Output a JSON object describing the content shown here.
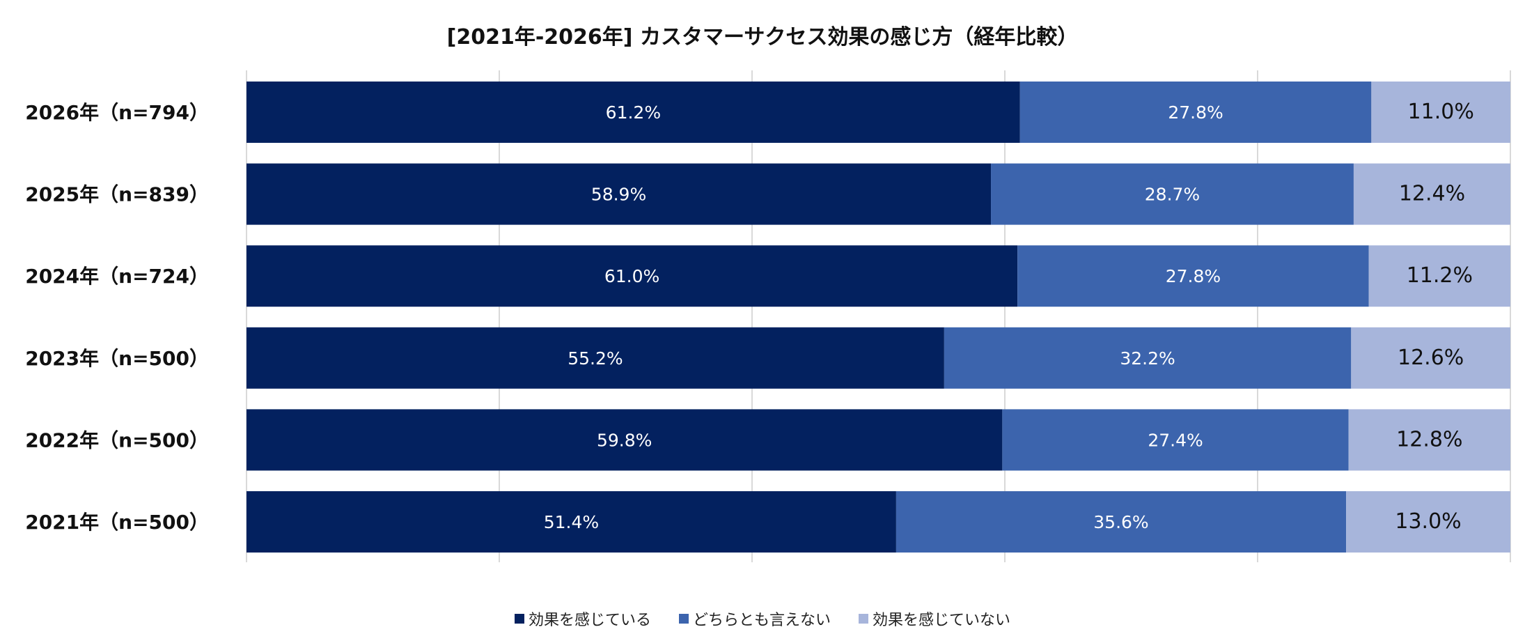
{
  "chart_data": {
    "type": "bar",
    "orientation": "horizontal",
    "stacked": true,
    "title": "[2021年-2026年] カスタマーサクセス効果の感じ方（経年比較）",
    "categories": [
      "2026年（n=794）",
      "2025年（n=839）",
      "2024年（n=724）",
      "2023年（n=500）",
      "2022年（n=500）",
      "2021年（n=500）"
    ],
    "series": [
      {
        "name": "効果を感じている",
        "color": "#03215F",
        "label_color": "#ffffff",
        "values": [
          61.2,
          58.9,
          61.0,
          55.2,
          59.8,
          51.4
        ]
      },
      {
        "name": "どちらとも言えない",
        "color": "#3C64AD",
        "label_color": "#ffffff",
        "values": [
          27.8,
          28.7,
          27.8,
          32.2,
          27.4,
          35.6
        ]
      },
      {
        "name": "効果を感じていない",
        "color": "#A7B5DB",
        "label_color": "#111111",
        "values": [
          11.0,
          12.4,
          11.2,
          12.6,
          12.8,
          13.0
        ]
      }
    ],
    "xlim": [
      0,
      100
    ],
    "grid_step": 20,
    "grid": true,
    "unit": "%",
    "legend_position": "bottom"
  }
}
